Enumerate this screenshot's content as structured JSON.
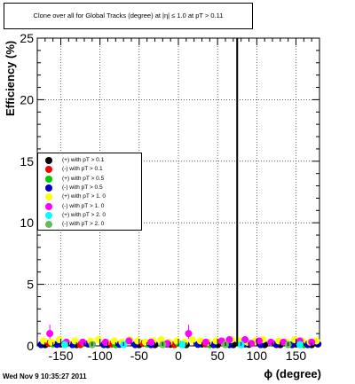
{
  "title": "Clone  over all for Global Tracks (degree) at |η| ≤ 1.0 at pT > 0.11",
  "footer": {
    "timestamp": "Wed Nov  9 10:35:27 2011"
  },
  "chart_data": {
    "type": "scatter",
    "xlabel": "ϕ (degree)",
    "ylabel": "Efficiency (%)",
    "xlim": [
      -180,
      180
    ],
    "ylim": [
      0,
      25
    ],
    "x_ticks": [
      -150,
      -100,
      -50,
      0,
      50,
      100,
      150
    ],
    "y_ticks": [
      0,
      5,
      10,
      15,
      20,
      25
    ],
    "grid": true,
    "legend_position": "left-middle",
    "vertical_line_x": 75,
    "series": [
      {
        "name": "(+) with pT > 0.1",
        "color": "#000000",
        "x": [
          -170,
          -150,
          -130,
          -110,
          -90,
          -70,
          -50,
          -30,
          -10,
          10,
          30,
          50,
          70,
          90,
          110,
          130,
          150,
          170
        ],
        "y": [
          0.1,
          0.15,
          0.1,
          0.12,
          0.1,
          0.15,
          0.1,
          0.1,
          0.12,
          0.1,
          0.15,
          0.1,
          0.1,
          0.12,
          0.1,
          0.1,
          0.15,
          0.1
        ]
      },
      {
        "name": "(-) with pT > 0.1",
        "color": "#ff0000",
        "x": [
          -165,
          -125,
          -85,
          -45,
          -5,
          35,
          85,
          125,
          165
        ],
        "y": [
          0.2,
          0.1,
          0.15,
          0.2,
          0.1,
          0.15,
          0.2,
          0.1,
          0.15
        ]
      },
      {
        "name": "(+) with pT > 0.5",
        "color": "#00cc00",
        "x": [
          -160,
          -120,
          -80,
          -40,
          0,
          40,
          80,
          120,
          160
        ],
        "y": [
          0.15,
          0.2,
          0.1,
          0.15,
          0.2,
          0.1,
          0.15,
          0.2,
          0.1
        ]
      },
      {
        "name": "(-) with pT > 0.5",
        "color": "#0000cc",
        "x": [
          -175,
          -155,
          -135,
          -115,
          -95,
          -75,
          -55,
          -35,
          -15,
          5,
          25,
          45,
          65,
          85,
          105,
          125,
          145,
          165,
          178
        ],
        "y": [
          0.1,
          0.12,
          0.1,
          0.15,
          0.1,
          0.12,
          0.1,
          0.1,
          0.15,
          0.1,
          0.12,
          0.1,
          0.1,
          0.15,
          0.1,
          0.12,
          0.1,
          0.1,
          0.15
        ]
      },
      {
        "name": "(+) with pT > 1. 0",
        "color": "#ffff00",
        "x": [
          -172,
          -162,
          -152,
          -142,
          -132,
          -122,
          -112,
          -102,
          -92,
          -82,
          -72,
          -62,
          -52,
          -42,
          -32,
          -22,
          -12,
          -2,
          8,
          18,
          28,
          38,
          48,
          58,
          68,
          78,
          88,
          98,
          108,
          118,
          128,
          138,
          148,
          158,
          168,
          176
        ],
        "y": [
          0.4,
          0.3,
          0.5,
          0.3,
          0.4,
          0.3,
          0.4,
          0.5,
          0.3,
          0.4,
          0.3,
          0.5,
          0.4,
          0.3,
          0.4,
          0.5,
          0.3,
          0.4,
          0.3,
          0.5,
          0.4,
          0.3,
          0.4,
          0.3,
          0.5,
          0.4,
          0.3,
          0.4,
          0.5,
          0.3,
          0.4,
          0.3,
          0.5,
          0.4,
          0.3,
          0.4
        ]
      },
      {
        "name": "(-) with pT > 1. 0",
        "color": "#ff00ff",
        "x": [
          -164,
          -143,
          -122,
          -93,
          -63,
          -35,
          -14,
          13,
          35,
          55,
          65,
          85,
          93,
          103,
          118,
          134,
          155,
          170
        ],
        "y": [
          1.0,
          0.3,
          0.3,
          0.3,
          0.4,
          0.3,
          0.2,
          1.0,
          0.3,
          0.4,
          0.5,
          0.5,
          0.2,
          0.4,
          0.3,
          0.3,
          0.4,
          0.3
        ]
      },
      {
        "name": "(+) with pT > 2. 0",
        "color": "#00ffff",
        "x": [
          -145,
          -70,
          5,
          80,
          155
        ],
        "y": [
          0.1,
          0.1,
          0.1,
          0.1,
          0.1
        ]
      },
      {
        "name": "(-) with pT > 2. 0",
        "color": "#66bb55",
        "x": [
          -110,
          -20,
          60,
          140
        ],
        "y": [
          0.1,
          0.1,
          0.1,
          0.1
        ]
      }
    ]
  }
}
